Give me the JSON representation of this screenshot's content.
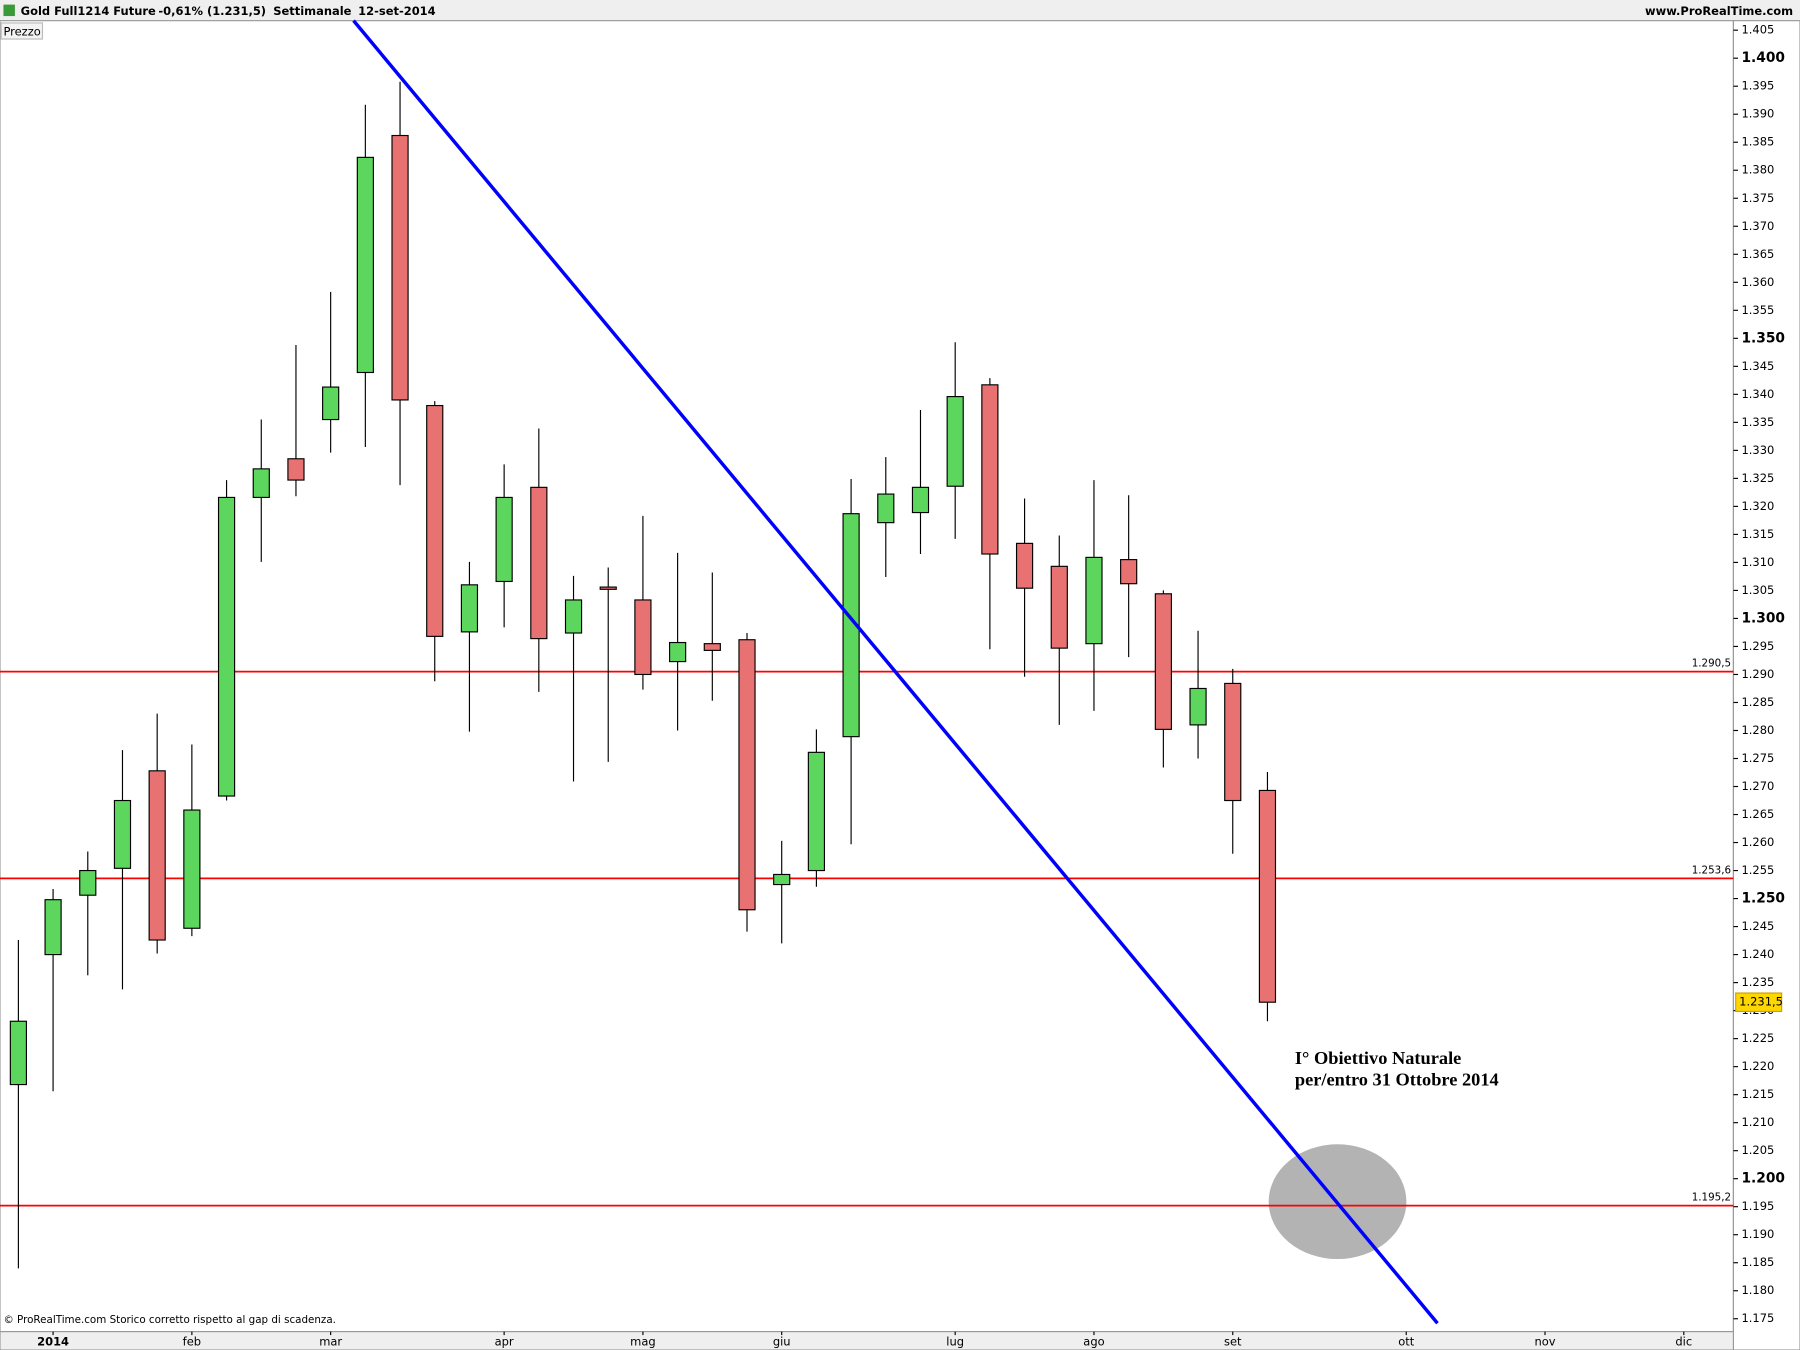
{
  "chart_data": {
    "type": "candlestick",
    "header": {
      "instrument": "Gold Full1214 Future",
      "change": "-0,61% (1.231,5)",
      "period": "Settimanale",
      "date": "12-set-2014",
      "site": "www.ProRealTime.com"
    },
    "panel_label": "Prezzo",
    "footer": "© ProRealTime.com  Storico corretto rispetto al gap di scadenza.",
    "up_color": "#5cd65c",
    "down_color": "#e87272",
    "open": [
      1216.8,
      1240.0,
      1250.6,
      1255.4,
      1272.8,
      1244.7,
      1268.3,
      1321.6,
      1328.5,
      1335.5,
      1343.9,
      1386.2,
      1338.0,
      1297.6,
      1306.6,
      1323.4,
      1297.4,
      1305.6,
      1303.3,
      1292.3,
      1295.5,
      1296.2,
      1252.5,
      1255.0,
      1278.9,
      1317.1,
      1318.9,
      1323.6,
      1341.7,
      1313.4,
      1309.3,
      1295.5,
      1310.5,
      1304.4,
      1281.0,
      1288.4,
      1269.3
    ],
    "high": [
      1242.6,
      1251.7,
      1258.4,
      1276.5,
      1283.0,
      1277.5,
      1324.7,
      1335.5,
      1348.8,
      1358.3,
      1391.7,
      1395.8,
      1338.8,
      1310.1,
      1327.5,
      1333.9,
      1307.6,
      1309.1,
      1318.3,
      1311.7,
      1308.2,
      1297.4,
      1260.3,
      1280.2,
      1324.9,
      1328.8,
      1337.2,
      1349.3,
      1342.9,
      1321.4,
      1314.8,
      1324.7,
      1322.0,
      1305.0,
      1297.8,
      1291.0,
      1272.6
    ],
    "low": [
      1184.0,
      1215.6,
      1236.3,
      1233.8,
      1240.2,
      1243.3,
      1267.5,
      1310.1,
      1321.8,
      1329.6,
      1330.6,
      1323.8,
      1288.8,
      1279.8,
      1298.4,
      1286.9,
      1270.9,
      1274.4,
      1287.3,
      1280.0,
      1285.3,
      1244.1,
      1242.0,
      1252.1,
      1259.7,
      1307.4,
      1311.5,
      1314.2,
      1294.5,
      1289.6,
      1281.0,
      1283.5,
      1293.1,
      1273.4,
      1275.0,
      1258.0,
      1228.1
    ],
    "close": [
      1228.1,
      1249.8,
      1255.0,
      1267.5,
      1242.6,
      1265.8,
      1321.6,
      1326.7,
      1324.7,
      1341.3,
      1382.3,
      1339.0,
      1296.8,
      1306.0,
      1321.6,
      1296.4,
      1303.3,
      1305.2,
      1290.0,
      1295.7,
      1294.3,
      1248.0,
      1254.3,
      1276.1,
      1318.7,
      1322.2,
      1323.4,
      1339.6,
      1311.5,
      1305.4,
      1294.7,
      1310.9,
      1306.2,
      1280.2,
      1287.5,
      1267.5,
      1231.5
    ],
    "last_price": {
      "value": 1231.5,
      "label": "1.231,5"
    },
    "xlim": [
      -0.53,
      49.43
    ],
    "xticks": [
      {
        "value": 1,
        "label": "2014"
      },
      {
        "value": 5,
        "label": "feb"
      },
      {
        "value": 9,
        "label": "mar"
      },
      {
        "value": 14,
        "label": "apr"
      },
      {
        "value": 18,
        "label": "mag"
      },
      {
        "value": 22,
        "label": "giu"
      },
      {
        "value": 27,
        "label": "lug"
      },
      {
        "value": 31,
        "label": "ago"
      },
      {
        "value": 35,
        "label": "set"
      },
      {
        "value": 40,
        "label": "ott"
      },
      {
        "value": 44,
        "label": "nov"
      },
      {
        "value": 48,
        "label": "dic"
      }
    ],
    "ylim": [
      1172.7,
      1406.7
    ],
    "yticks": [
      {
        "value": 1175,
        "label": "1.175"
      },
      {
        "value": 1180,
        "label": "1.180"
      },
      {
        "value": 1185,
        "label": "1.185"
      },
      {
        "value": 1190,
        "label": "1.190"
      },
      {
        "value": 1195,
        "label": "1.195"
      },
      {
        "value": 1200,
        "label": "1.200"
      },
      {
        "value": 1205,
        "label": "1.205"
      },
      {
        "value": 1210,
        "label": "1.210"
      },
      {
        "value": 1215,
        "label": "1.215"
      },
      {
        "value": 1220,
        "label": "1.220"
      },
      {
        "value": 1225,
        "label": "1.225"
      },
      {
        "value": 1230,
        "label": "1.230"
      },
      {
        "value": 1235,
        "label": "1.235"
      },
      {
        "value": 1240,
        "label": "1.240"
      },
      {
        "value": 1245,
        "label": "1.245"
      },
      {
        "value": 1250,
        "label": "1.250"
      },
      {
        "value": 1255,
        "label": "1.255"
      },
      {
        "value": 1260,
        "label": "1.260"
      },
      {
        "value": 1265,
        "label": "1.265"
      },
      {
        "value": 1270,
        "label": "1.270"
      },
      {
        "value": 1275,
        "label": "1.275"
      },
      {
        "value": 1280,
        "label": "1.280"
      },
      {
        "value": 1285,
        "label": "1.285"
      },
      {
        "value": 1290,
        "label": "1.290"
      },
      {
        "value": 1295,
        "label": "1.295"
      },
      {
        "value": 1300,
        "label": "1.300"
      },
      {
        "value": 1305,
        "label": "1.305"
      },
      {
        "value": 1310,
        "label": "1.310"
      },
      {
        "value": 1315,
        "label": "1.315"
      },
      {
        "value": 1320,
        "label": "1.320"
      },
      {
        "value": 1325,
        "label": "1.325"
      },
      {
        "value": 1330,
        "label": "1.330"
      },
      {
        "value": 1335,
        "label": "1.335"
      },
      {
        "value": 1340,
        "label": "1.340"
      },
      {
        "value": 1345,
        "label": "1.345"
      },
      {
        "value": 1350,
        "label": "1.350"
      },
      {
        "value": 1355,
        "label": "1.355"
      },
      {
        "value": 1360,
        "label": "1.360"
      },
      {
        "value": 1365,
        "label": "1.365"
      },
      {
        "value": 1370,
        "label": "1.370"
      },
      {
        "value": 1375,
        "label": "1.375"
      },
      {
        "value": 1380,
        "label": "1.380"
      },
      {
        "value": 1385,
        "label": "1.385"
      },
      {
        "value": 1390,
        "label": "1.390"
      },
      {
        "value": 1395,
        "label": "1.395"
      },
      {
        "value": 1400,
        "label": "1.400"
      },
      {
        "value": 1405,
        "label": "1.405"
      }
    ],
    "hlines": {
      "color": "#ff0000",
      "values": [
        1290.5,
        1253.6,
        1195.2
      ],
      "value_labels": [
        "1.290,5",
        "1.253,6",
        "1.195,2"
      ]
    },
    "trendline": {
      "color": "#0000ff",
      "x": [
        9.66,
        40.9
      ],
      "y": [
        1406.7,
        1174.2
      ]
    },
    "target_zone": {
      "color": "#a6a6a6",
      "x": 38.02,
      "y": 1195.9
    },
    "annotation": [
      "I° Obiettivo Naturale",
      "per/entro 31 Ottobre 2014"
    ]
  }
}
